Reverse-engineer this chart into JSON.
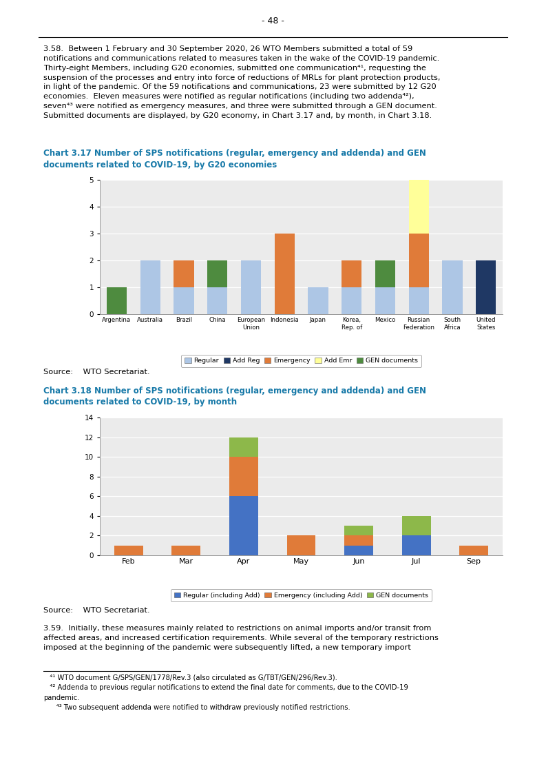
{
  "page_number": "- 48 -",
  "chart317": {
    "title": "Chart 3.17 Number of SPS notifications (regular, emergency and addenda) and GEN\ndocuments related to COVID-19, by G20 economies",
    "categories": [
      "Argentina",
      "Australia",
      "Brazil",
      "China",
      "European\nUnion",
      "Indonesia",
      "Japan",
      "Korea,\nRep. of",
      "Mexico",
      "Russian\nFederation",
      "South\nAfrica",
      "United\nStates"
    ],
    "series": {
      "Regular": [
        0,
        2,
        1,
        1,
        2,
        0,
        1,
        1,
        1,
        1,
        2,
        0
      ],
      "Add Reg": [
        0,
        0,
        0,
        0,
        0,
        0,
        0,
        0,
        0,
        0,
        0,
        2
      ],
      "Emergency": [
        0,
        0,
        1,
        0,
        0,
        3,
        0,
        1,
        0,
        2,
        0,
        0
      ],
      "Add Emr": [
        0,
        0,
        0,
        0,
        0,
        0,
        0,
        0,
        0,
        2,
        0,
        0
      ],
      "GEN documents": [
        1,
        0,
        0,
        1,
        0,
        0,
        0,
        0,
        1,
        0,
        0,
        0
      ]
    },
    "colors": {
      "Regular": "#adc6e5",
      "Add Reg": "#1f3864",
      "Emergency": "#e07b39",
      "Add Emr": "#ffff99",
      "GEN documents": "#4e8b3f"
    },
    "ylim": [
      0,
      5
    ],
    "yticks": [
      0,
      1,
      2,
      3,
      4,
      5
    ],
    "source": "Source:    WTO Secretariat."
  },
  "chart318": {
    "title": "Chart 3.18 Number of SPS notifications (regular, emergency and addenda) and GEN\ndocuments related to COVID-19, by month",
    "categories": [
      "Feb",
      "Mar",
      "Apr",
      "May",
      "Jun",
      "Jul",
      "Sep"
    ],
    "series": {
      "Regular (including Add)": [
        0,
        0,
        6,
        0,
        1,
        2,
        0
      ],
      "Emergency (including Add)": [
        1,
        1,
        4,
        2,
        1,
        0,
        1
      ],
      "GEN documents": [
        0,
        0,
        2,
        0,
        1,
        2,
        0
      ]
    },
    "colors": {
      "Regular (including Add)": "#4472c4",
      "Emergency (including Add)": "#e07b39",
      "GEN documents": "#8db84a"
    },
    "ylim": [
      0,
      14
    ],
    "yticks": [
      0,
      2,
      4,
      6,
      8,
      10,
      12,
      14
    ],
    "source": "Source:    WTO Secretariat."
  },
  "title_color": "#1779a8",
  "bg_color": "#ffffff",
  "chart_bg": "#ebebeb"
}
